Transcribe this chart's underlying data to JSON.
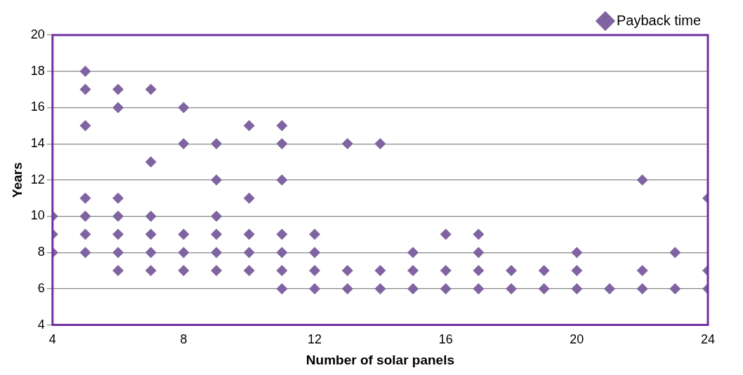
{
  "chart_data": {
    "type": "scatter",
    "xlabel": "Number of solar panels",
    "ylabel": "Years",
    "series": [
      {
        "name": "Payback time",
        "color": "#8064a2",
        "x": [
          4,
          4,
          4,
          5,
          5,
          5,
          5,
          5,
          5,
          5,
          6,
          6,
          6,
          6,
          6,
          6,
          6,
          7,
          7,
          7,
          7,
          7,
          7,
          8,
          8,
          8,
          8,
          8,
          9,
          9,
          9,
          9,
          9,
          9,
          10,
          10,
          10,
          10,
          10,
          11,
          11,
          11,
          11,
          11,
          11,
          11,
          12,
          12,
          12,
          12,
          13,
          13,
          13,
          14,
          14,
          14,
          15,
          15,
          15,
          16,
          16,
          16,
          17,
          17,
          17,
          17,
          18,
          18,
          19,
          19,
          20,
          20,
          20,
          21,
          22,
          22,
          22,
          23,
          23,
          24,
          24,
          24
        ],
        "values": [
          10,
          9,
          8,
          18,
          17,
          15,
          11,
          10,
          9,
          8,
          17,
          16,
          11,
          10,
          9,
          8,
          7,
          17,
          13,
          10,
          9,
          8,
          7,
          16,
          14,
          9,
          8,
          7,
          14,
          12,
          10,
          9,
          8,
          7,
          15,
          11,
          9,
          8,
          7,
          15,
          14,
          12,
          9,
          8,
          7,
          6,
          9,
          8,
          7,
          6,
          14,
          7,
          6,
          14,
          7,
          6,
          8,
          7,
          6,
          9,
          7,
          6,
          9,
          8,
          7,
          6,
          7,
          6,
          7,
          6,
          8,
          7,
          6,
          6,
          12,
          7,
          6,
          8,
          6,
          11,
          7,
          6
        ]
      }
    ],
    "xlim": [
      4,
      24
    ],
    "xticks": [
      4,
      8,
      12,
      16,
      20,
      24
    ],
    "ylim": [
      4,
      20
    ],
    "yticks": [
      4,
      6,
      8,
      10,
      12,
      14,
      16,
      18,
      20
    ],
    "grid": "y",
    "legend": "top right",
    "marker": "diamond"
  }
}
